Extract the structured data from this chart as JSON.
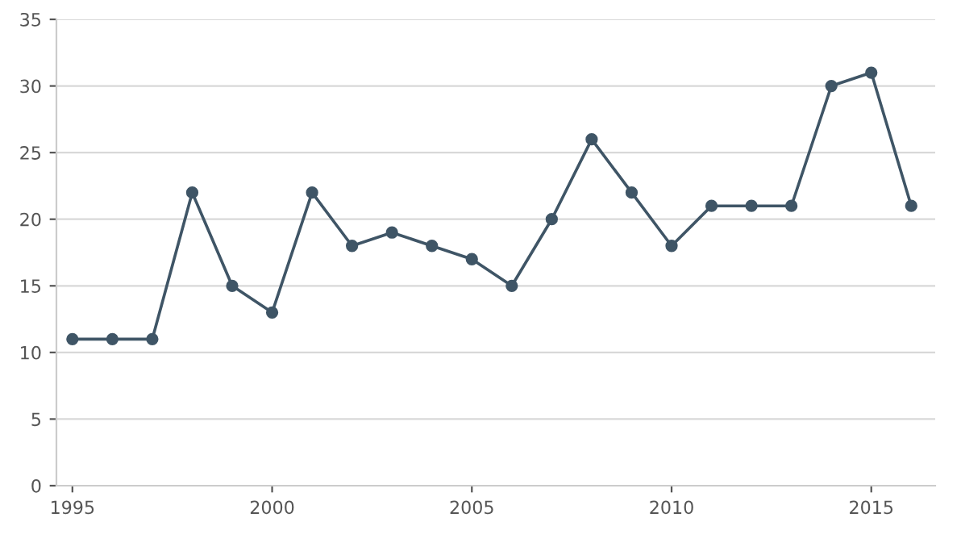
{
  "chart_data": {
    "type": "line",
    "x": [
      1995,
      1996,
      1997,
      1998,
      1999,
      2000,
      2001,
      2002,
      2003,
      2004,
      2005,
      2006,
      2007,
      2008,
      2009,
      2010,
      2011,
      2012,
      2013,
      2014,
      2015,
      2016
    ],
    "series": [
      {
        "color": "#3f5566",
        "values": [
          11,
          11,
          11,
          22,
          15,
          13,
          22,
          18,
          19,
          18,
          17,
          15,
          20,
          26,
          22,
          18,
          21,
          21,
          21,
          30,
          31,
          21
        ]
      }
    ],
    "xlim": [
      1994.6,
      2016.6
    ],
    "xticks": [
      1995,
      2000,
      2005,
      2010,
      2015
    ],
    "ylim": [
      0,
      35
    ],
    "yticks": [
      0,
      5,
      10,
      15,
      20,
      25,
      30,
      35
    ],
    "grid": "y",
    "marker": "circle",
    "line_style": "solid"
  }
}
